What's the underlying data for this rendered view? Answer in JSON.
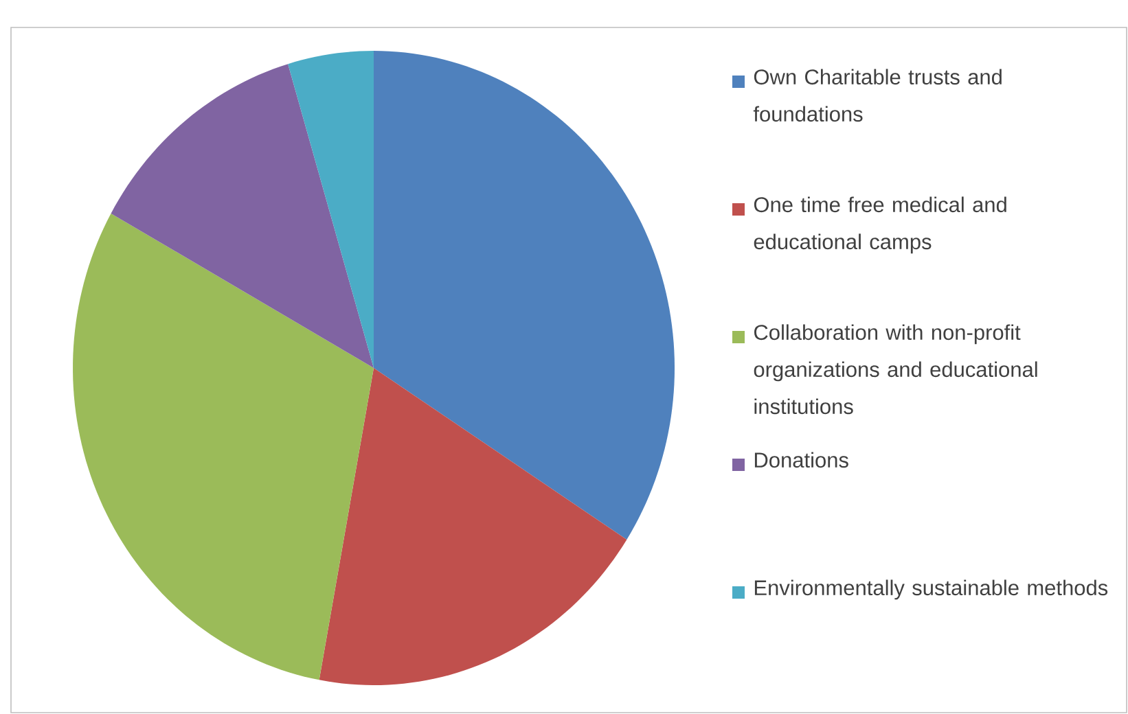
{
  "chart_data": {
    "type": "pie",
    "categories": [
      "Own Charitable trusts and foundations",
      "One time free medical and educational camps",
      "Collaboration with non-profit organizations and educational institutions",
      "Donations",
      "Environmentally sustainable methods"
    ],
    "values": [
      34.1,
      18.8,
      30.2,
      12.3,
      4.6
    ],
    "colors": [
      "#4f81bd",
      "#c0504d",
      "#9bbb59",
      "#8064a2",
      "#4bacc6"
    ],
    "legend": "right"
  }
}
